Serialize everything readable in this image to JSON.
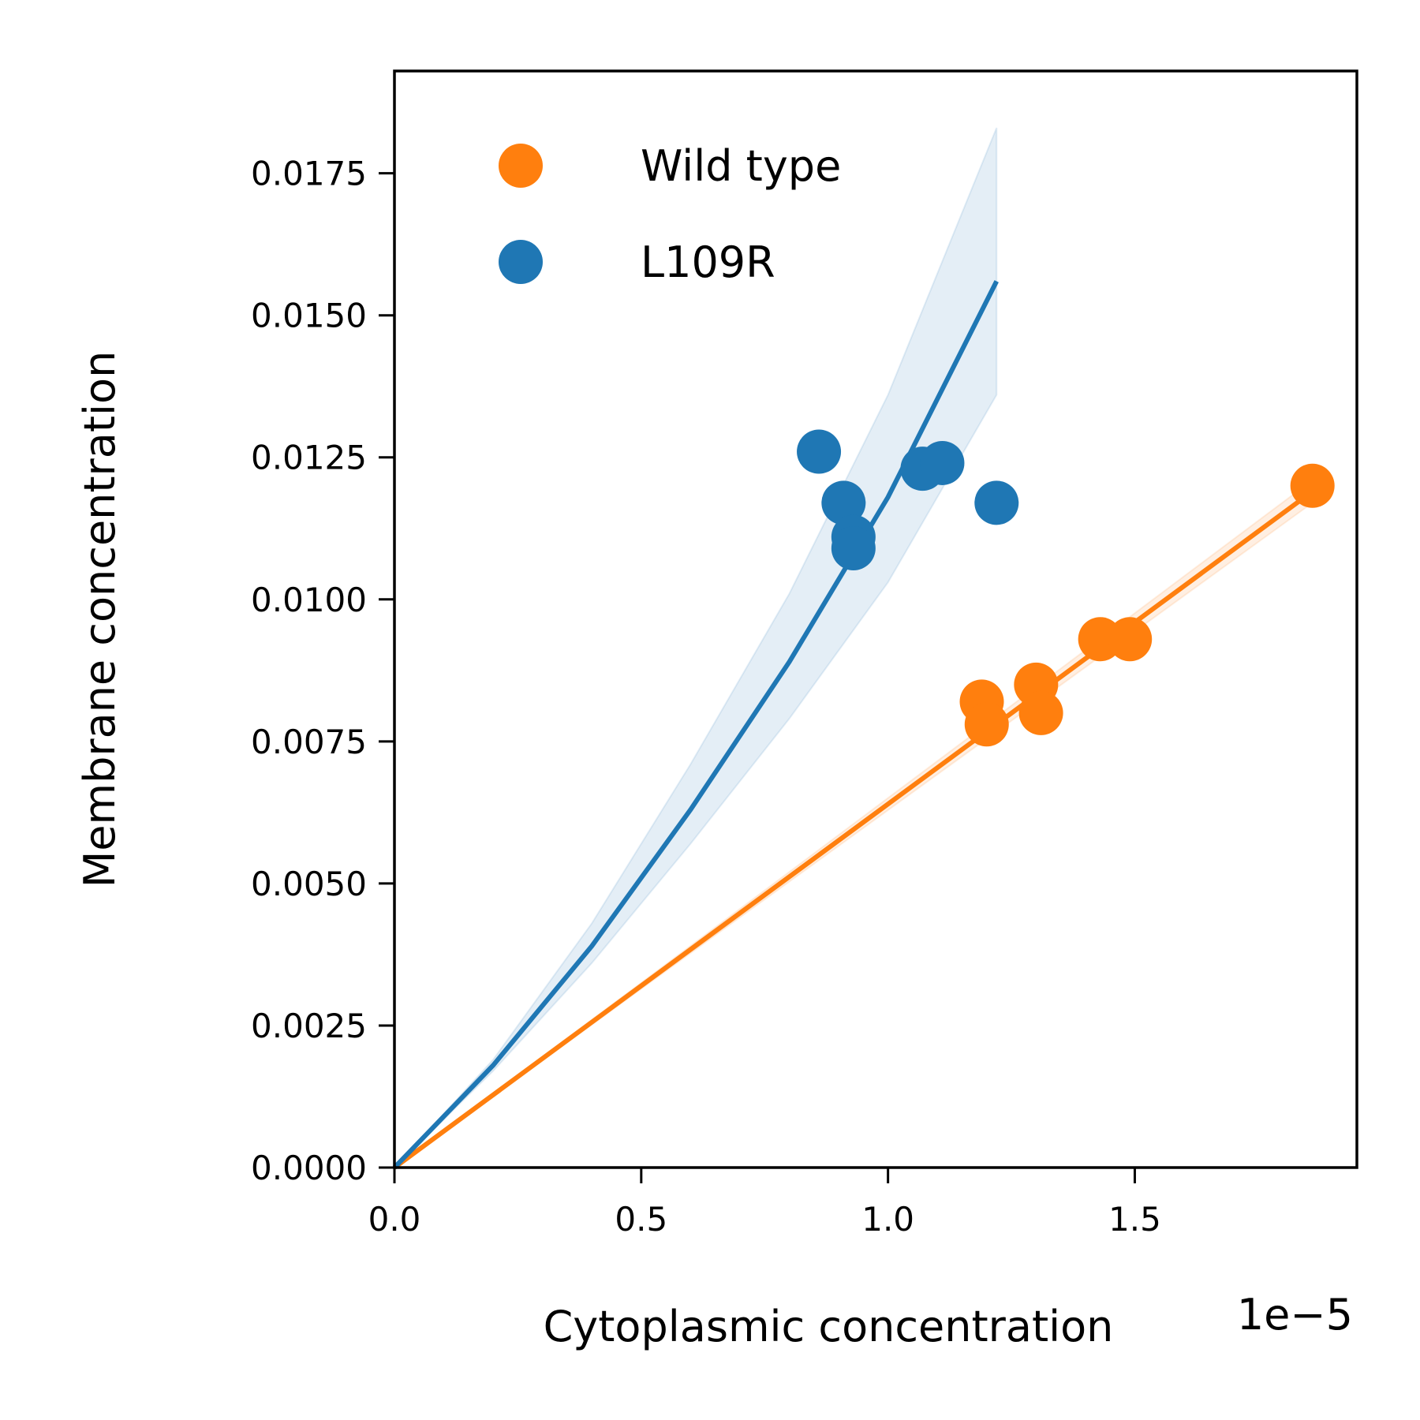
{
  "chart_data": {
    "type": "scatter",
    "xlabel": "Cytoplasmic concentration",
    "ylabel": "Membrane concentration",
    "x_offset_label": "1e−5",
    "xlim": [
      0.0,
      1.95
    ],
    "ylim": [
      0.0,
      0.0193
    ],
    "x_ticks": [
      0.0,
      0.5,
      1.0,
      1.5
    ],
    "x_tick_labels": [
      "0.0",
      "0.5",
      "1.0",
      "1.5"
    ],
    "y_ticks": [
      0.0,
      0.0025,
      0.005,
      0.0075,
      0.01,
      0.0125,
      0.015,
      0.0175
    ],
    "y_tick_labels": [
      "0.0000",
      "0.0025",
      "0.0050",
      "0.0075",
      "0.0100",
      "0.0125",
      "0.0150",
      "0.0175"
    ],
    "grid": false,
    "legend_position": "top-left",
    "series": [
      {
        "name": "Wild type",
        "color": "#ff7f0e",
        "points": [
          [
            1.19,
            0.0082
          ],
          [
            1.2,
            0.0078
          ],
          [
            1.3,
            0.0085
          ],
          [
            1.31,
            0.008
          ],
          [
            1.43,
            0.0093
          ],
          [
            1.49,
            0.0093
          ],
          [
            1.86,
            0.012
          ]
        ],
        "fit": {
          "x": [
            0.0,
            1.86
          ],
          "y": [
            0.0,
            0.0119
          ]
        },
        "band": {
          "x": [
            0.0,
            1.86
          ],
          "lower": [
            0.0,
            0.0117
          ],
          "upper": [
            0.0,
            0.0121
          ]
        }
      },
      {
        "name": "L109R",
        "color": "#1f77b4",
        "points": [
          [
            0.86,
            0.0126
          ],
          [
            0.91,
            0.0117
          ],
          [
            0.93,
            0.0111
          ],
          [
            0.93,
            0.0109
          ],
          [
            1.07,
            0.0123
          ],
          [
            1.11,
            0.0124
          ],
          [
            1.22,
            0.0117
          ]
        ],
        "fit": {
          "x": [
            0.0,
            0.2,
            0.4,
            0.6,
            0.8,
            1.0,
            1.22
          ],
          "y": [
            0.0,
            0.0018,
            0.0039,
            0.0063,
            0.0089,
            0.0118,
            0.0156
          ]
        },
        "band": {
          "x": [
            0.0,
            0.2,
            0.4,
            0.6,
            0.8,
            1.0,
            1.22
          ],
          "lower": [
            0.0,
            0.0017,
            0.0036,
            0.0057,
            0.0079,
            0.0103,
            0.0136
          ],
          "upper": [
            0.0,
            0.0019,
            0.0043,
            0.0071,
            0.0101,
            0.0136,
            0.0183
          ]
        }
      }
    ]
  }
}
